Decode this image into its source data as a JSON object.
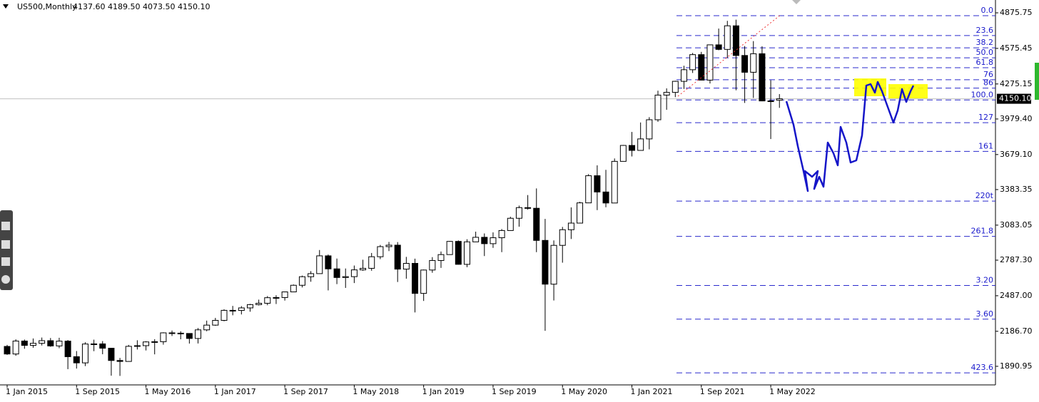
{
  "chart_data": {
    "type": "candlestick",
    "title": "US500,Monthly",
    "header_ohlc": "4137.60 4189.50 4073.50 4150.10",
    "categories": [
      "1 Jan 2015",
      null,
      null,
      null,
      null,
      null,
      null,
      null,
      "1 Sep 2015",
      null,
      null,
      null,
      null,
      null,
      null,
      null,
      "1 May 2016",
      null,
      null,
      null,
      null,
      null,
      null,
      null,
      "1 Jan 2017",
      null,
      null,
      null,
      null,
      null,
      null,
      null,
      "1 Sep 2017",
      null,
      null,
      null,
      null,
      null,
      null,
      null,
      "1 May 2018",
      null,
      null,
      null,
      null,
      null,
      null,
      null,
      "1 Jan 2019",
      null,
      null,
      null,
      null,
      null,
      null,
      null,
      "1 Sep 2019",
      null,
      null,
      null,
      null,
      null,
      null,
      null,
      "1 May 2020",
      null,
      null,
      null,
      null,
      null,
      null,
      null,
      "1 Jan 2021",
      null,
      null,
      null,
      null,
      null,
      null,
      null,
      "1 Sep 2021",
      null,
      null,
      null,
      null,
      null,
      null,
      null,
      "1 May 2022",
      null
    ],
    "open": [
      2058.9,
      1995.0,
      2104.5,
      2067.9,
      2085.5,
      2107.4,
      2063.1,
      2103.8,
      1972.2,
      1920.0,
      2079.4,
      2080.4,
      2043.9,
      1940.2,
      1932.2,
      2059.7,
      2065.3,
      2097.0,
      2098.9,
      2173.6,
      2171.0,
      2168.3,
      2126.2,
      2198.8,
      2238.8,
      2278.9,
      2363.6,
      2362.7,
      2384.2,
      2411.8,
      2423.4,
      2470.3,
      2471.7,
      2519.4,
      2575.3,
      2647.6,
      2673.6,
      2823.8,
      2713.8,
      2640.9,
      2648.1,
      2705.3,
      2718.4,
      2816.3,
      2901.5,
      2914.0,
      2711.7,
      2760.2,
      2506.9,
      2704.1,
      2784.5,
      2834.4,
      2945.8,
      2752.1,
      2941.8,
      2980.4,
      2926.5,
      2976.7,
      3037.6,
      3141.0,
      3230.8,
      3225.5,
      2954.2,
      2584.6,
      2912.4,
      3044.3,
      3100.3,
      3271.1,
      3500.3,
      3363.0,
      3270.0,
      3621.6,
      3756.1,
      3714.2,
      3811.2,
      3972.9,
      4181.2,
      4204.1,
      4297.5,
      4395.3,
      4522.7,
      4307.5,
      4605.4,
      4567.0,
      4766.2,
      4515.6,
      4373.9,
      4530.4,
      4131.9,
      4137.6
    ],
    "high": [
      2072,
      2119,
      2117,
      2126,
      2134,
      2130,
      2132,
      2113,
      2020,
      2094,
      2116,
      2104,
      2038,
      1962,
      2072,
      2111,
      2103,
      2120,
      2178,
      2193,
      2187,
      2169,
      2214,
      2277,
      2300,
      2372,
      2401,
      2399,
      2418,
      2454,
      2484,
      2491,
      2519,
      2582,
      2657,
      2695,
      2873,
      2835,
      2801,
      2717,
      2742,
      2791,
      2848,
      2916,
      2941,
      2940,
      2815,
      2800,
      2708,
      2813,
      2860,
      2949,
      2954,
      2964,
      3028,
      3013,
      3022,
      3050,
      3154,
      3248,
      3337,
      3393,
      3136,
      2954,
      3068,
      3233,
      3280,
      3514,
      3588,
      3550,
      3646,
      3760,
      3870,
      3950,
      3995,
      4218,
      4238,
      4302,
      4429,
      4537,
      4546,
      4608,
      4743,
      4808,
      4818,
      4595,
      4637,
      4593,
      4307,
      4189.5
    ],
    "low": [
      1988,
      1980,
      2039,
      2048,
      2067,
      2056,
      2044,
      1867,
      1872,
      1893,
      2019,
      1993,
      1812,
      1810,
      1937,
      2033,
      2025,
      1992,
      2074,
      2147,
      2119,
      2083,
      2084,
      2187,
      2233,
      2271,
      2322,
      2329,
      2352,
      2405,
      2407,
      2417,
      2446,
      2520,
      2557,
      2605,
      2682,
      2532,
      2585,
      2553,
      2594,
      2698,
      2698,
      2796,
      2864,
      2603,
      2631,
      2346,
      2443,
      2681,
      2722,
      2848,
      2750,
      2728,
      2943,
      2822,
      2891,
      2855,
      3050,
      3070,
      3214,
      2855,
      2191,
      2447,
      2766,
      2966,
      3101,
      3270,
      3210,
      3234,
      3279,
      3633,
      3663,
      3725,
      3723,
      3956,
      4057,
      4164,
      4233,
      4368,
      4306,
      4279,
      4560,
      4496,
      4222,
      4115,
      4157,
      4129,
      3810,
      4073.5
    ],
    "close": [
      1995.0,
      2104.5,
      2067.9,
      2085.5,
      2107.4,
      2063.1,
      2103.8,
      1972.2,
      1920.0,
      2079.4,
      2080.4,
      2043.9,
      1940.2,
      1932.2,
      2059.7,
      2065.3,
      2097.0,
      2098.9,
      2173.6,
      2171.0,
      2168.3,
      2126.2,
      2198.8,
      2238.8,
      2278.9,
      2363.6,
      2362.7,
      2384.2,
      2411.8,
      2423.4,
      2470.3,
      2471.7,
      2519.4,
      2575.3,
      2647.6,
      2673.6,
      2823.8,
      2713.8,
      2640.9,
      2648.1,
      2705.3,
      2718.4,
      2816.3,
      2901.5,
      2914.0,
      2711.7,
      2760.2,
      2506.9,
      2704.1,
      2784.5,
      2834.4,
      2945.8,
      2752.1,
      2941.8,
      2980.4,
      2926.5,
      2976.7,
      3037.6,
      3141.0,
      3230.8,
      3225.5,
      2954.2,
      2584.6,
      2912.4,
      3044.3,
      3100.3,
      3271.1,
      3500.3,
      3363.0,
      3270.0,
      3621.6,
      3756.1,
      3714.2,
      3811.2,
      3972.9,
      4181.2,
      4204.1,
      4297.5,
      4395.3,
      4522.7,
      4307.5,
      4605.4,
      4567.0,
      4766.2,
      4515.6,
      4373.9,
      4530.4,
      4131.9,
      4132.2,
      4150.1
    ],
    "ylim": [
      1734.1,
      4984.1
    ],
    "yticks": [
      {
        "value": 4875.75,
        "label": "4875.75"
      },
      {
        "value": 4575.45,
        "label": "4575.45"
      },
      {
        "value": 4275.15,
        "label": "4275.15"
      },
      {
        "value": 3979.4,
        "label": "3979.40"
      },
      {
        "value": 3679.1,
        "label": "3679.10"
      },
      {
        "value": 3383.35,
        "label": "3383.35"
      },
      {
        "value": 3083.05,
        "label": "3083.05"
      },
      {
        "value": 2787.3,
        "label": "2787.30"
      },
      {
        "value": 2487.0,
        "label": "2487.00"
      },
      {
        "value": 2186.7,
        "label": "2186.70"
      },
      {
        "value": 1890.95,
        "label": "1890.95"
      }
    ],
    "fib_levels": [
      {
        "value": 4852,
        "label": "0.0"
      },
      {
        "value": 4684,
        "label": "23.6"
      },
      {
        "value": 4580,
        "label": "38.2"
      },
      {
        "value": 4496,
        "label": "50.0"
      },
      {
        "value": 4412,
        "label": "61.8"
      },
      {
        "value": 4311,
        "label": "76"
      },
      {
        "value": 4240,
        "label": "86"
      },
      {
        "value": 4140,
        "label": "100.0"
      },
      {
        "value": 3948,
        "label": "127"
      },
      {
        "value": 3706,
        "label": "161"
      },
      {
        "value": 3286,
        "label": "220t"
      },
      {
        "value": 2988,
        "label": "261.8"
      },
      {
        "value": 2574,
        "label": "3.20"
      },
      {
        "value": 2289,
        "label": "3.60"
      },
      {
        "value": 1836,
        "label": "423.6"
      }
    ],
    "current_price": {
      "value": 4150.1,
      "label": "4150.10"
    },
    "fib_color": "#2a2acc",
    "bull_color": "#ffffff",
    "bear_color": "#000000"
  }
}
